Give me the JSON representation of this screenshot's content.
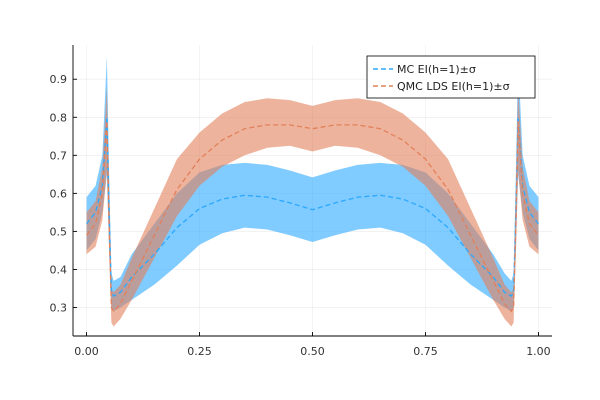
{
  "chart_data": {
    "type": "area",
    "title": "",
    "xlabel": "",
    "ylabel": "",
    "xlim": [
      -0.03,
      1.03
    ],
    "ylim": [
      0.225,
      0.99
    ],
    "xticks": [
      "0.00",
      "0.25",
      "0.50",
      "0.75",
      "1.00"
    ],
    "xtick_values": [
      0,
      0.25,
      0.5,
      0.75,
      1.0
    ],
    "yticks": [
      "0.3",
      "0.4",
      "0.5",
      "0.6",
      "0.7",
      "0.8",
      "0.9"
    ],
    "ytick_values": [
      0.3,
      0.4,
      0.5,
      0.6,
      0.7,
      0.8,
      0.9
    ],
    "grid": true,
    "legend_position": "top-right",
    "series": [
      {
        "name": "MC EI(h=1)±σ",
        "color": "#2ba8ff",
        "line_style": "dashed",
        "x": [
          0.0,
          0.02,
          0.035,
          0.045,
          0.05,
          0.055,
          0.06,
          0.075,
          0.1,
          0.15,
          0.2,
          0.25,
          0.3,
          0.35,
          0.4,
          0.45,
          0.5,
          0.55,
          0.6,
          0.65,
          0.7,
          0.75,
          0.8,
          0.85,
          0.9,
          0.925,
          0.94,
          0.945,
          0.95,
          0.955,
          0.965,
          0.98,
          1.0
        ],
        "mean": [
          0.52,
          0.55,
          0.62,
          0.8,
          0.55,
          0.34,
          0.33,
          0.34,
          0.38,
          0.44,
          0.51,
          0.56,
          0.585,
          0.595,
          0.59,
          0.575,
          0.557,
          0.575,
          0.59,
          0.595,
          0.585,
          0.56,
          0.51,
          0.44,
          0.38,
          0.34,
          0.33,
          0.34,
          0.55,
          0.8,
          0.62,
          0.55,
          0.52
        ],
        "lower": [
          0.45,
          0.48,
          0.55,
          0.65,
          0.45,
          0.3,
          0.29,
          0.3,
          0.32,
          0.36,
          0.41,
          0.465,
          0.495,
          0.51,
          0.505,
          0.49,
          0.472,
          0.49,
          0.505,
          0.51,
          0.495,
          0.465,
          0.41,
          0.36,
          0.32,
          0.3,
          0.29,
          0.3,
          0.45,
          0.65,
          0.55,
          0.48,
          0.45
        ],
        "upper": [
          0.59,
          0.62,
          0.7,
          0.96,
          0.65,
          0.39,
          0.37,
          0.38,
          0.44,
          0.52,
          0.6,
          0.655,
          0.675,
          0.68,
          0.675,
          0.66,
          0.642,
          0.66,
          0.675,
          0.68,
          0.675,
          0.655,
          0.6,
          0.52,
          0.44,
          0.39,
          0.37,
          0.39,
          0.65,
          0.96,
          0.7,
          0.62,
          0.59
        ]
      },
      {
        "name": "QMC LDS EI(h=1)±σ",
        "color": "#e2805a",
        "line_style": "dashed",
        "x": [
          0.0,
          0.02,
          0.035,
          0.045,
          0.05,
          0.055,
          0.06,
          0.075,
          0.1,
          0.15,
          0.2,
          0.25,
          0.3,
          0.35,
          0.4,
          0.45,
          0.5,
          0.55,
          0.6,
          0.65,
          0.7,
          0.75,
          0.8,
          0.85,
          0.9,
          0.925,
          0.94,
          0.945,
          0.95,
          0.955,
          0.965,
          0.98,
          1.0
        ],
        "mean": [
          0.49,
          0.52,
          0.6,
          0.79,
          0.52,
          0.3,
          0.29,
          0.31,
          0.37,
          0.49,
          0.61,
          0.69,
          0.74,
          0.77,
          0.78,
          0.78,
          0.77,
          0.78,
          0.78,
          0.77,
          0.74,
          0.69,
          0.61,
          0.49,
          0.37,
          0.31,
          0.29,
          0.3,
          0.52,
          0.79,
          0.6,
          0.52,
          0.49
        ],
        "lower": [
          0.44,
          0.46,
          0.53,
          0.66,
          0.44,
          0.26,
          0.25,
          0.27,
          0.32,
          0.43,
          0.54,
          0.62,
          0.67,
          0.7,
          0.72,
          0.725,
          0.71,
          0.725,
          0.72,
          0.7,
          0.67,
          0.62,
          0.54,
          0.43,
          0.32,
          0.27,
          0.25,
          0.26,
          0.44,
          0.66,
          0.53,
          0.46,
          0.44
        ],
        "upper": [
          0.55,
          0.58,
          0.67,
          0.88,
          0.6,
          0.35,
          0.34,
          0.36,
          0.43,
          0.56,
          0.69,
          0.76,
          0.81,
          0.84,
          0.85,
          0.845,
          0.83,
          0.845,
          0.85,
          0.84,
          0.81,
          0.76,
          0.69,
          0.56,
          0.43,
          0.36,
          0.34,
          0.35,
          0.6,
          0.88,
          0.67,
          0.58,
          0.55
        ]
      }
    ]
  }
}
